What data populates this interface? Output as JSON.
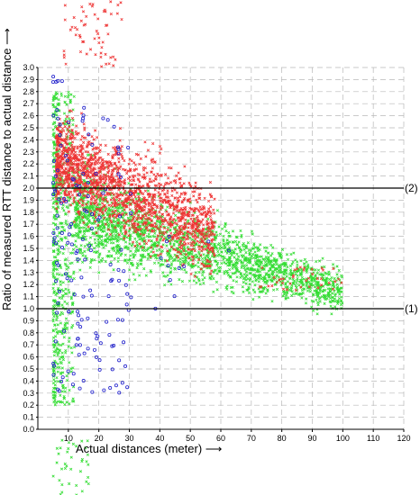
{
  "chart_data": {
    "type": "scatter",
    "xlabel": "Actual distances (meter) ⟶",
    "ylabel": "Ratio of measured RTT distance to actual distance ⟶",
    "xlim": [
      0,
      120
    ],
    "ylim": [
      0.0,
      3.0
    ],
    "x_ticks": [
      "10",
      "20",
      "30",
      "40",
      "50",
      "60",
      "70",
      "80",
      "90",
      "100",
      "110",
      "120"
    ],
    "y_ticks": [
      "0.0",
      "0.1",
      "0.2",
      "0.3",
      "0.4",
      "0.5",
      "0.6",
      "0.7",
      "0.8",
      "0.9",
      "1.0",
      "1.1",
      "1.2",
      "1.3",
      "1.4",
      "1.5",
      "1.6",
      "1.7",
      "1.8",
      "1.9",
      "2.0",
      "2.1",
      "2.2",
      "2.3",
      "2.4",
      "2.5",
      "2.6",
      "2.7",
      "2.8",
      "2.9",
      "3.0"
    ],
    "grid": true,
    "reference_lines": [
      {
        "label": "(1)",
        "y": 1.0
      },
      {
        "label": "(2)",
        "y": 2.0
      }
    ],
    "colors": {
      "green": "#33dd33",
      "red": "#ee3333",
      "blue": "#2222cc",
      "grid": "#b8b8b8"
    },
    "series_marker": {
      "green": "x",
      "red": "x",
      "blue": "circle"
    },
    "series_regions": [
      {
        "color": "green",
        "x_range": [
          5,
          100
        ],
        "y_center": 1.6,
        "y_spread": 0.45
      },
      {
        "color": "red",
        "x_range": [
          5,
          60
        ],
        "y_center": 2.1,
        "y_spread": 0.5
      },
      {
        "color": "blue",
        "x_range": [
          5,
          30
        ],
        "y_center": 1.5,
        "y_spread": 0.7
      }
    ],
    "samples": {
      "green": [
        {
          "x": 60,
          "y": 1.3
        },
        {
          "x": 70,
          "y": 1.4
        },
        {
          "x": 80,
          "y": 1.3
        },
        {
          "x": 100,
          "y": 1.2
        },
        {
          "x": 85,
          "y": 1.15
        }
      ],
      "red": [
        {
          "x": 20,
          "y": 2.3
        },
        {
          "x": 30,
          "y": 2.2
        },
        {
          "x": 40,
          "y": 2.1
        },
        {
          "x": 15,
          "y": 2.6
        }
      ],
      "blue": [
        {
          "x": 10,
          "y": 2.9
        },
        {
          "x": 15,
          "y": 2.0
        },
        {
          "x": 20,
          "y": 1.5
        },
        {
          "x": 25,
          "y": 1.2
        }
      ]
    }
  }
}
